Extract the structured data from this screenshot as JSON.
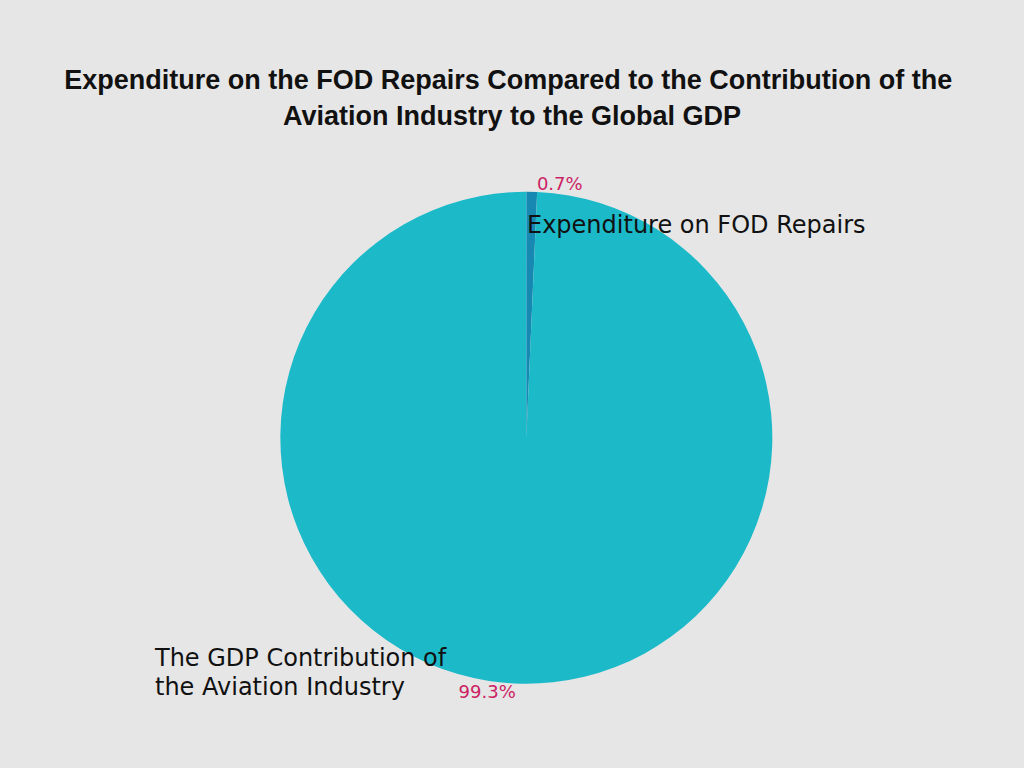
{
  "chart_data": {
    "type": "pie",
    "title": "Expenditure on the FOD Repairs Compared to the Contribution of the Aviation Industry to the Global GDP",
    "categories": [
      "Expenditure on FOD Repairs",
      "The GDP Contribution of the Aviation Industry"
    ],
    "values": [
      0.7,
      99.3
    ],
    "value_labels": [
      "0.7%",
      "99.3%"
    ],
    "colors": [
      "#1688b2",
      "#1cb9c9"
    ],
    "data_labels": true
  }
}
